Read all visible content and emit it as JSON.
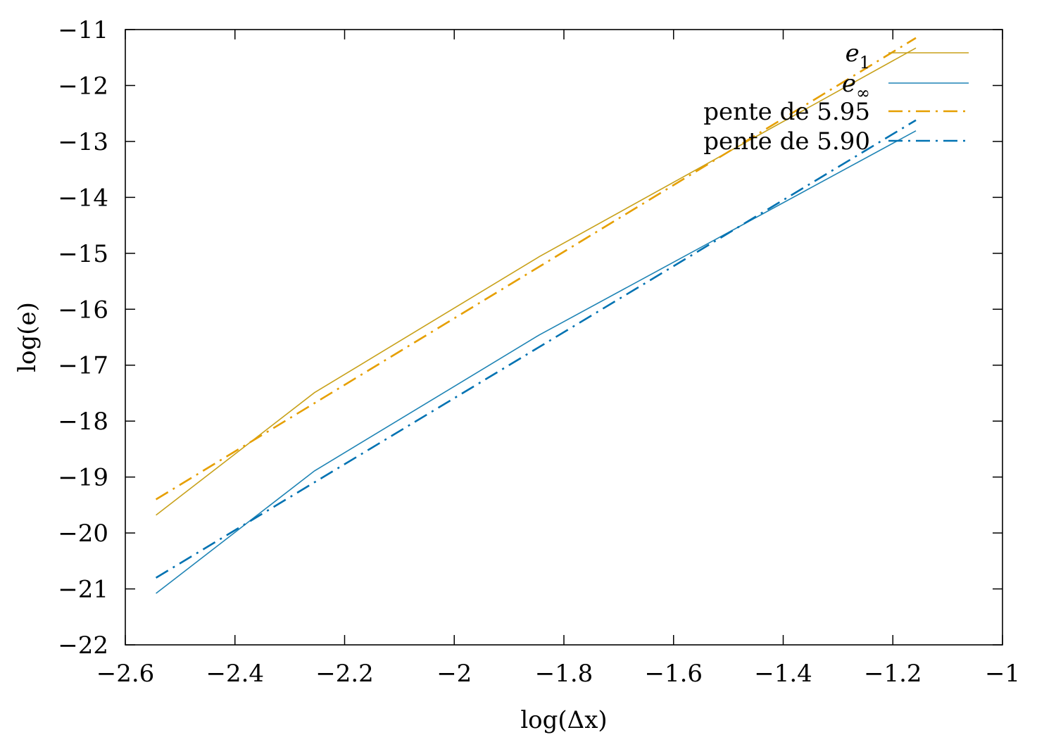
{
  "chart_data": {
    "type": "line",
    "title": "",
    "xlabel": "log(Δx)",
    "ylabel": "log(e)",
    "xlim": [
      -2.6,
      -1.0
    ],
    "ylim": [
      -22,
      -11
    ],
    "xticks": [
      -2.6,
      -2.4,
      -2.2,
      -2.0,
      -1.8,
      -1.6,
      -1.4,
      -1.2,
      -1.0
    ],
    "yticks": [
      -22,
      -21,
      -20,
      -19,
      -18,
      -17,
      -16,
      -15,
      -14,
      -13,
      -12,
      -11
    ],
    "xtick_labels": [
      "−2.6",
      "−2.4",
      "−2.2",
      "−2",
      "−1.8",
      "−1.6",
      "−1.4",
      "−1.2",
      "−1"
    ],
    "ytick_labels": [
      "−22",
      "−21",
      "−20",
      "−19",
      "−18",
      "−17",
      "−16",
      "−15",
      "−14",
      "−13",
      "−12",
      "−11"
    ],
    "grid": false,
    "legend_position": "top-right",
    "series": [
      {
        "name": "e_1",
        "color": "#c8a11a",
        "dash": "solid",
        "points": [
          [
            -2.544,
            -19.68
          ],
          [
            -2.255,
            -17.49
          ],
          [
            -1.845,
            -15.06
          ],
          [
            -1.158,
            -11.33
          ]
        ]
      },
      {
        "name": "e_∞",
        "color": "#1f84b5",
        "dash": "solid",
        "points": [
          [
            -2.544,
            -21.08
          ],
          [
            -2.255,
            -18.89
          ],
          [
            -1.845,
            -16.46
          ],
          [
            -1.158,
            -12.81
          ]
        ]
      },
      {
        "name": "pente de 5.95",
        "color": "#e69f00",
        "dash": "dash-dot",
        "points": [
          [
            -2.544,
            -19.4
          ],
          [
            -1.158,
            -11.15
          ]
        ]
      },
      {
        "name": "pente de 5.90",
        "color": "#0072b2",
        "dash": "dash-dot",
        "points": [
          [
            -2.544,
            -20.8
          ],
          [
            -1.158,
            -12.62
          ]
        ]
      }
    ]
  }
}
